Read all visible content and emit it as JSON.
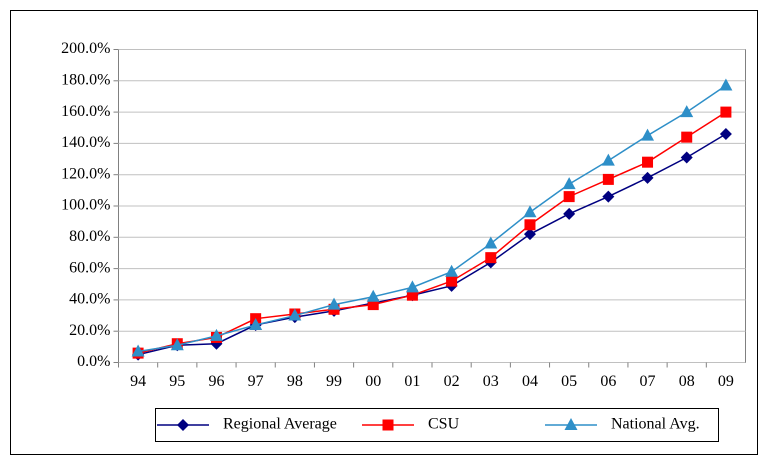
{
  "chart_data": {
    "type": "line",
    "categories": [
      "94",
      "95",
      "96",
      "97",
      "98",
      "99",
      "00",
      "01",
      "02",
      "03",
      "04",
      "05",
      "06",
      "07",
      "08",
      "09"
    ],
    "series": [
      {
        "name": "Regional Average",
        "color": "#000080",
        "marker": "diamond",
        "values": [
          5,
          11,
          12,
          24,
          29,
          33,
          38,
          43,
          49,
          64,
          82,
          95,
          106,
          118,
          131,
          146
        ]
      },
      {
        "name": "CSU",
        "color": "#ff0000",
        "marker": "square",
        "values": [
          6,
          12,
          16,
          28,
          31,
          34,
          37,
          43,
          52,
          67,
          88,
          106,
          117,
          128,
          144,
          160
        ]
      },
      {
        "name": "National Avg.",
        "color": "#2e8fc8",
        "marker": "triangle",
        "values": [
          7,
          11,
          17,
          24,
          30,
          37,
          42,
          48,
          58,
          76,
          96,
          114,
          129,
          145,
          160,
          177
        ]
      }
    ],
    "ylim": [
      0,
      200
    ],
    "yticks": [
      {
        "value": 0,
        "label": "0.0%"
      },
      {
        "value": 20,
        "label": "20.0%"
      },
      {
        "value": 40,
        "label": "40.0%"
      },
      {
        "value": 60,
        "label": "60.0%"
      },
      {
        "value": 80,
        "label": "80.0%"
      },
      {
        "value": 100,
        "label": "100.0%"
      },
      {
        "value": 120,
        "label": "120.0%"
      },
      {
        "value": 140,
        "label": "140.0%"
      },
      {
        "value": 160,
        "label": "160.0%"
      },
      {
        "value": 180,
        "label": "180.0%"
      },
      {
        "value": 200,
        "label": "200.0%"
      }
    ],
    "grid": true,
    "legend": "bottom"
  }
}
